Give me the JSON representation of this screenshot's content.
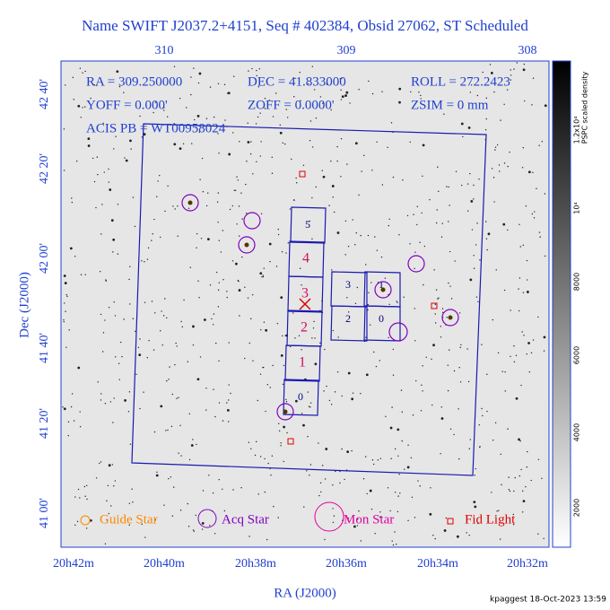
{
  "header": {
    "title": "Name SWIFT J2037.2+4151, Seq # 402384, Obsid 27062, ST Scheduled"
  },
  "info": {
    "lines": [
      [
        "RA = 309.250000",
        "DEC = 41.833000",
        "ROLL = 272.2423"
      ],
      [
        "YOFF =   0.000'",
        "ZOFF =  0.0000'",
        "ZSIM = 0 mm"
      ],
      [
        "ACIS PB = WT00958024"
      ]
    ]
  },
  "axes": {
    "x_label": "RA (J2000)",
    "y_label": "Dec (J2000)",
    "top_ticks": [
      "310",
      "309",
      "308"
    ],
    "bottom_ticks": [
      "20h42m",
      "20h40m",
      "20h38m",
      "20h36m",
      "20h34m",
      "20h32m"
    ],
    "left_ticks": [
      "42 40'",
      "42 20'",
      "42 00'",
      "41 40'",
      "41 20'",
      "41 00'"
    ]
  },
  "colorbar": {
    "title": "PSPC scaled density",
    "ticks": [
      "1.2x10⁴",
      "10⁴",
      "8000",
      "6000",
      "4000",
      "2000"
    ]
  },
  "chips": {
    "acis_s": [
      "0",
      "1",
      "2",
      "3",
      "4",
      "5"
    ],
    "acis_i": [
      "0",
      "1",
      "2",
      "3"
    ]
  },
  "legend": [
    "Guide Star",
    "Acq Star",
    "Mon Star",
    "Fid Light"
  ],
  "footer": "kpaggest 18-Oct-2023 13:59"
}
